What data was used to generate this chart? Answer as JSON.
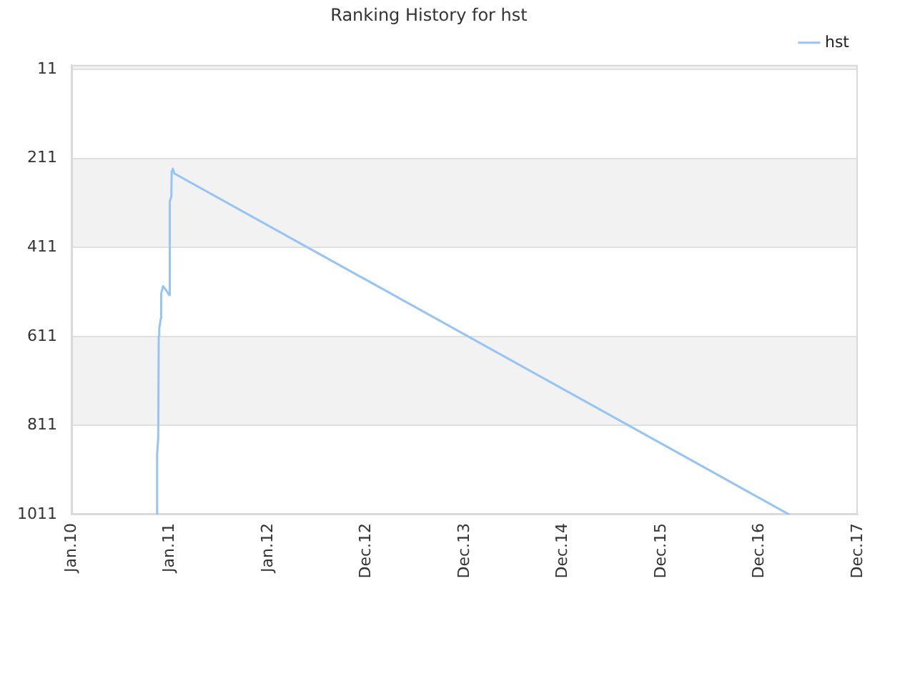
{
  "chart_data": {
    "type": "line",
    "title": "Ranking History for hst",
    "series": [
      {
        "name": "hst",
        "color": "#95c4f5",
        "x": [
          "2010-11-15",
          "2010-11-15",
          "2010-11-19",
          "2010-11-21",
          "2010-11-23",
          "2010-11-29",
          "2010-11-30",
          "2010-12-07",
          "2010-12-17",
          "2010-12-30",
          "2011-01-01",
          "2011-01-07",
          "2011-01-08",
          "2011-01-12",
          "2011-01-18",
          "2017-04-19"
        ],
        "values": [
          1011,
          875,
          840,
          611,
          592,
          570,
          515,
          498,
          506,
          518,
          308,
          296,
          240,
          234,
          245,
          1011
        ]
      }
    ],
    "xlim": [
      "2010-01-01",
      "2017-12-30"
    ],
    "xticks": [
      {
        "value": "2010-01-01",
        "label": "Jan.10"
      },
      {
        "value": "2011-01-01",
        "label": "Jan.11"
      },
      {
        "value": "2012-01-01",
        "label": "Jan.12"
      },
      {
        "value": "2012-12-31",
        "label": "Dec.12"
      },
      {
        "value": "2013-12-31",
        "label": "Dec.13"
      },
      {
        "value": "2014-12-31",
        "label": "Dec.14"
      },
      {
        "value": "2015-12-31",
        "label": "Dec.15"
      },
      {
        "value": "2016-12-30",
        "label": "Dec.16"
      },
      {
        "value": "2017-12-30",
        "label": "Dec.17"
      }
    ],
    "ylim": [
      1011,
      1
    ],
    "yticks": [
      11,
      211,
      411,
      611,
      811,
      1011
    ],
    "bands": [
      {
        "axis": "y",
        "from": 1,
        "to": 11,
        "color": "#f2f2f2"
      },
      {
        "axis": "y",
        "from": 211,
        "to": 411,
        "color": "#f2f2f2"
      },
      {
        "axis": "y",
        "from": 611,
        "to": 811,
        "color": "#f2f2f2"
      }
    ],
    "grid": "y",
    "legend": "top right",
    "marker": "none"
  }
}
